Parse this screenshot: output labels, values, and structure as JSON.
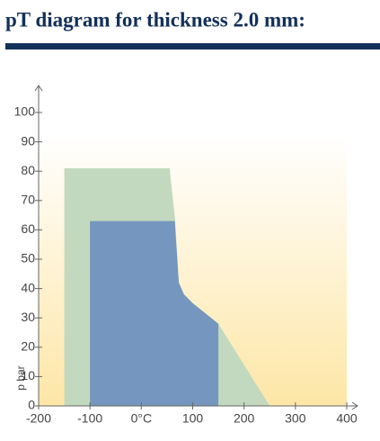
{
  "chart_data": {
    "type": "area",
    "title": "pT diagram for thickness 2.0 mm:",
    "ylabel": "p bar",
    "areas": [
      {
        "color": "#c2d9bf",
        "x": [
          -150,
          -150,
          55,
          66,
          73,
          83,
          100,
          150,
          250
        ],
        "y": [
          0,
          81,
          81,
          63,
          42,
          38,
          35,
          28,
          0
        ]
      },
      {
        "color": "#7596be",
        "x": [
          -100,
          -100,
          65,
          73,
          83,
          100,
          150,
          150
        ],
        "y": [
          0,
          63,
          63,
          42,
          38,
          35,
          28,
          0
        ]
      }
    ],
    "xlim": [
      -200,
      400
    ],
    "xticks": [
      -200,
      -100,
      {
        "value": 0,
        "label": "0°C"
      },
      100,
      200,
      300,
      400
    ],
    "ylim": [
      0,
      100
    ],
    "yticks": [
      0,
      10,
      20,
      30,
      40,
      50,
      60,
      70,
      80,
      90,
      100
    ]
  }
}
